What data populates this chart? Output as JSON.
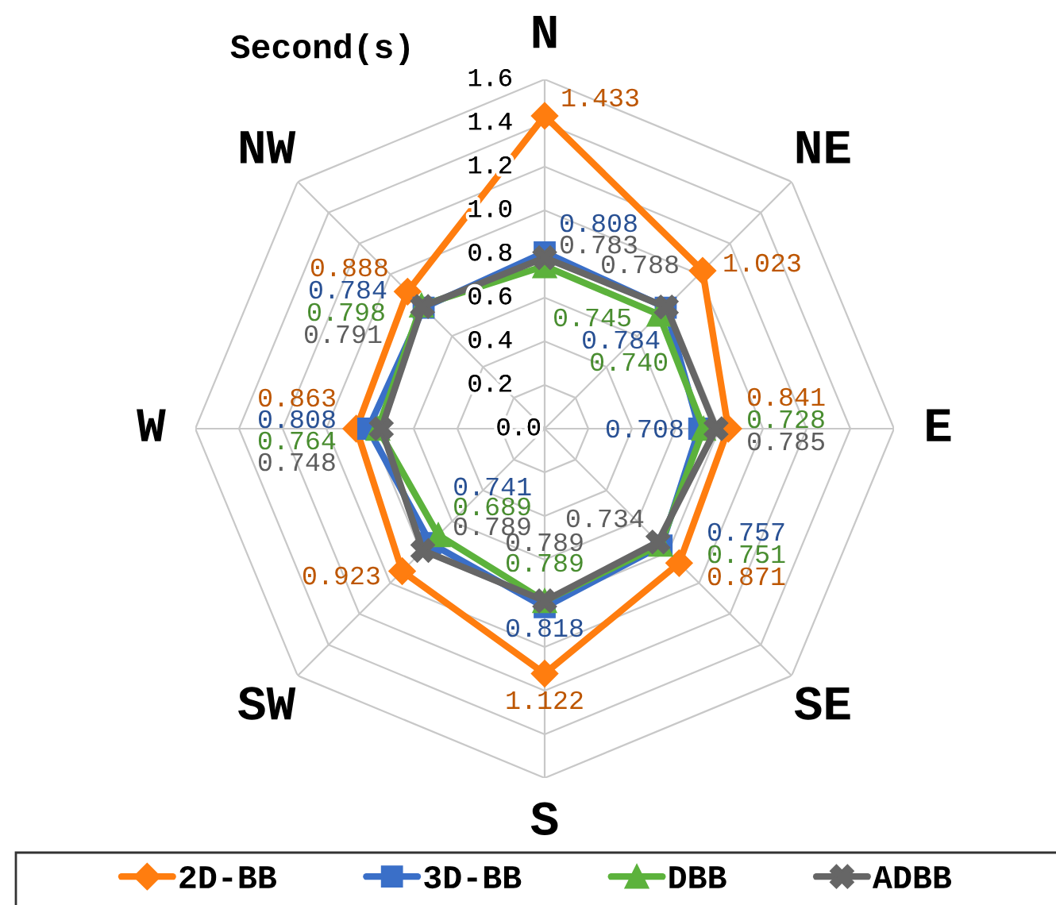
{
  "chart_data": {
    "type": "radar",
    "ylabel": "Second(s)",
    "categories": [
      "N",
      "NE",
      "E",
      "SE",
      "S",
      "SW",
      "W",
      "NW"
    ],
    "series": [
      {
        "name": "2D-BB",
        "color": "#ff7d0f",
        "marker": "diamond",
        "values": [
          1.433,
          1.023,
          0.841,
          0.871,
          1.122,
          0.923,
          0.863,
          0.888
        ],
        "value_labels": [
          "1.433",
          "1.023",
          "0.841",
          "0.871",
          "1.122",
          "0.923",
          "0.863",
          "0.888"
        ]
      },
      {
        "name": "3D-BB",
        "color": "#3a6fc8",
        "marker": "square",
        "values": [
          0.808,
          0.784,
          0.708,
          0.757,
          0.818,
          0.741,
          0.808,
          0.784
        ],
        "value_labels": [
          "0.808",
          "0.784",
          "0.708",
          "0.757",
          "0.818",
          "0.741",
          "0.808",
          "0.784"
        ]
      },
      {
        "name": "DBB",
        "color": "#5cb23c",
        "marker": "triangle",
        "values": [
          0.745,
          0.74,
          0.728,
          0.751,
          0.789,
          0.689,
          0.764,
          0.798
        ],
        "value_labels": [
          "0.745",
          "0.740",
          "0.728",
          "0.751",
          "0.789",
          "0.689",
          "0.764",
          "0.798"
        ]
      },
      {
        "name": "ADBB",
        "color": "#666666",
        "marker": "cross",
        "values": [
          0.783,
          0.788,
          0.785,
          0.734,
          0.789,
          0.789,
          0.748,
          0.791
        ],
        "value_labels": [
          "0.783",
          "0.788",
          "0.785",
          "0.734",
          "0.789",
          "0.789",
          "0.748",
          "0.791"
        ]
      }
    ],
    "ylim": [
      0,
      1.6
    ],
    "yticks": [
      {
        "value": 0,
        "label": "0.0"
      },
      0.2,
      0.4,
      0.6,
      0.8,
      {
        "value": 1,
        "label": "1.0"
      },
      1.2,
      1.4,
      1.6
    ],
    "grid": true,
    "legend": "bottom",
    "line_style": "solid"
  }
}
